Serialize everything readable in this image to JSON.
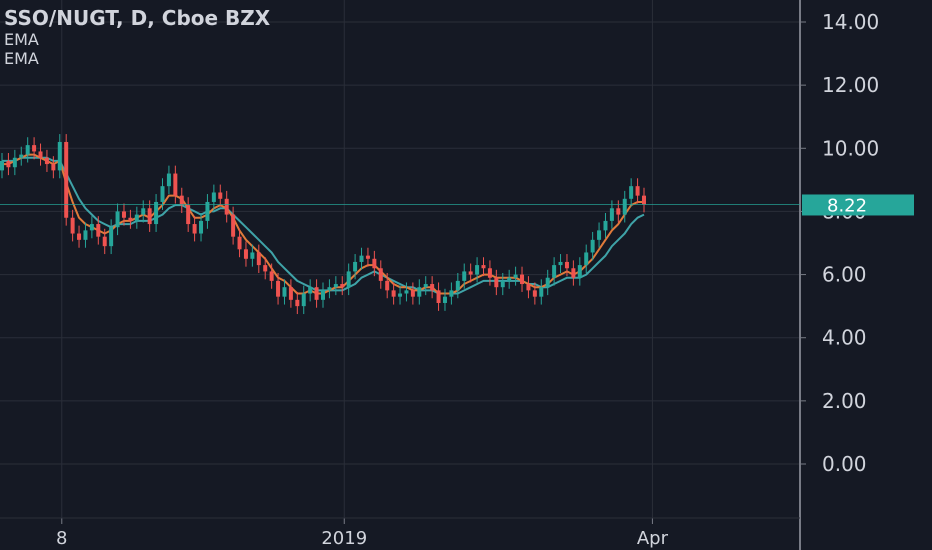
{
  "chart_data": {
    "type": "candlestick",
    "title": "SSO/NUGT, D, Cboe BZX",
    "indicators": [
      {
        "name": "EMA",
        "color": "#e07a3a"
      },
      {
        "name": "EMA",
        "color": "#3fa3a8"
      }
    ],
    "ylim": [
      -1.6,
      14.6
    ],
    "y_ticks": [
      "14.00",
      "12.00",
      "10.00",
      "8.00",
      "6.00",
      "4.00",
      "2.00",
      "0.00"
    ],
    "y_tick_values": [
      14,
      12,
      10,
      8,
      6,
      4,
      2,
      0
    ],
    "x_tick_labels": [
      "8",
      "2019",
      "Apr"
    ],
    "x_tick_index": [
      9,
      53,
      101
    ],
    "last_price": 8.22,
    "last_price_label": "8.22",
    "grid": true,
    "colors": {
      "up": "#26a69a",
      "down": "#ef5350",
      "ema_fast": "#e07a3a",
      "ema_slow": "#3fa3a8",
      "price_tag": "#26a69a",
      "background": "#151924"
    },
    "close": [
      9.6,
      9.4,
      9.7,
      9.8,
      10.1,
      9.9,
      9.7,
      9.5,
      9.3,
      10.2,
      7.8,
      7.3,
      7.1,
      7.4,
      7.6,
      7.2,
      6.9,
      7.5,
      8.0,
      7.8,
      7.7,
      7.9,
      8.1,
      7.6,
      8.3,
      8.8,
      9.2,
      8.5,
      8.2,
      7.6,
      7.3,
      7.7,
      8.3,
      8.6,
      8.4,
      7.9,
      7.2,
      6.8,
      6.5,
      6.7,
      6.3,
      6.1,
      5.8,
      5.3,
      5.6,
      5.2,
      5.0,
      5.4,
      5.6,
      5.2,
      5.5,
      5.6,
      5.7,
      5.6,
      6.1,
      6.4,
      6.6,
      6.5,
      6.2,
      5.8,
      5.5,
      5.3,
      5.4,
      5.5,
      5.3,
      5.6,
      5.7,
      5.5,
      5.1,
      5.3,
      5.5,
      5.8,
      6.1,
      6.0,
      6.3,
      6.2,
      5.9,
      5.6,
      5.8,
      5.9,
      6.0,
      5.7,
      5.5,
      5.3,
      5.6,
      5.9,
      6.3,
      6.4,
      6.2,
      5.9,
      6.3,
      6.7,
      7.1,
      7.4,
      7.7,
      8.1,
      7.9,
      8.4,
      8.8,
      8.5,
      8.22
    ],
    "open": [
      9.3,
      9.6,
      9.4,
      9.7,
      9.8,
      10.1,
      9.9,
      9.7,
      9.5,
      9.3,
      10.2,
      7.8,
      7.3,
      7.1,
      7.4,
      7.6,
      7.2,
      6.9,
      7.5,
      8.0,
      7.8,
      7.7,
      7.9,
      8.1,
      7.6,
      8.3,
      8.8,
      9.2,
      8.5,
      8.2,
      7.6,
      7.3,
      7.7,
      8.3,
      8.6,
      8.4,
      7.9,
      7.2,
      6.8,
      6.5,
      6.7,
      6.3,
      6.1,
      5.8,
      5.3,
      5.6,
      5.2,
      5.0,
      5.4,
      5.6,
      5.2,
      5.5,
      5.6,
      5.7,
      5.6,
      6.1,
      6.4,
      6.6,
      6.5,
      6.2,
      5.8,
      5.5,
      5.3,
      5.4,
      5.5,
      5.3,
      5.6,
      5.7,
      5.5,
      5.1,
      5.3,
      5.5,
      5.8,
      6.1,
      6.0,
      6.3,
      6.2,
      5.9,
      5.6,
      5.8,
      5.9,
      6.0,
      5.7,
      5.5,
      5.3,
      5.6,
      5.9,
      6.3,
      6.4,
      6.2,
      5.9,
      6.3,
      6.7,
      7.1,
      7.4,
      7.7,
      8.1,
      7.9,
      8.4,
      8.8,
      8.5
    ],
    "ema_fast": [
      9.5,
      9.5,
      9.6,
      9.7,
      9.8,
      9.8,
      9.7,
      9.6,
      9.5,
      9.6,
      8.9,
      8.3,
      7.8,
      7.6,
      7.5,
      7.4,
      7.3,
      7.4,
      7.6,
      7.7,
      7.7,
      7.8,
      7.9,
      7.8,
      8.0,
      8.2,
      8.5,
      8.5,
      8.4,
      8.1,
      7.8,
      7.8,
      7.9,
      8.1,
      8.2,
      8.1,
      7.8,
      7.4,
      7.1,
      6.9,
      6.7,
      6.5,
      6.2,
      5.9,
      5.8,
      5.6,
      5.4,
      5.4,
      5.5,
      5.4,
      5.4,
      5.5,
      5.6,
      5.6,
      5.8,
      6.0,
      6.2,
      6.3,
      6.3,
      6.1,
      5.9,
      5.7,
      5.6,
      5.6,
      5.5,
      5.5,
      5.6,
      5.6,
      5.4,
      5.4,
      5.4,
      5.5,
      5.7,
      5.8,
      5.9,
      6.0,
      6.0,
      5.9,
      5.9,
      5.9,
      5.9,
      5.8,
      5.7,
      5.6,
      5.6,
      5.7,
      5.9,
      6.0,
      6.1,
      6.0,
      6.1,
      6.3,
      6.5,
      6.8,
      7.1,
      7.4,
      7.6,
      7.9,
      8.2,
      8.3,
      8.3
    ],
    "ema_slow": [
      9.6,
      9.6,
      9.6,
      9.7,
      9.7,
      9.7,
      9.7,
      9.7,
      9.6,
      9.6,
      9.2,
      8.8,
      8.4,
      8.1,
      7.9,
      7.7,
      7.6,
      7.5,
      7.6,
      7.6,
      7.6,
      7.7,
      7.7,
      7.7,
      7.8,
      7.9,
      8.1,
      8.2,
      8.2,
      8.1,
      8.0,
      7.9,
      8.0,
      8.0,
      8.1,
      8.1,
      7.9,
      7.7,
      7.5,
      7.3,
      7.1,
      6.9,
      6.7,
      6.4,
      6.2,
      6.0,
      5.8,
      5.7,
      5.6,
      5.5,
      5.5,
      5.5,
      5.5,
      5.5,
      5.6,
      5.7,
      5.9,
      6.0,
      6.1,
      6.0,
      5.9,
      5.8,
      5.7,
      5.6,
      5.6,
      5.5,
      5.5,
      5.5,
      5.4,
      5.4,
      5.4,
      5.4,
      5.5,
      5.6,
      5.7,
      5.8,
      5.8,
      5.8,
      5.8,
      5.8,
      5.8,
      5.8,
      5.7,
      5.7,
      5.6,
      5.6,
      5.7,
      5.8,
      5.9,
      5.9,
      5.9,
      6.0,
      6.2,
      6.4,
      6.6,
      6.9,
      7.1,
      7.3,
      7.6,
      7.8,
      7.9
    ]
  }
}
